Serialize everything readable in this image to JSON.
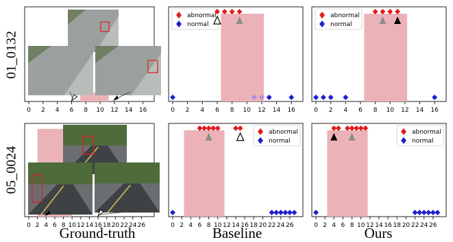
{
  "rows": [
    {
      "label": "01_0132",
      "xticks": [
        "0",
        "2",
        "4",
        "6",
        "8",
        "10",
        "12",
        "14",
        "16"
      ],
      "xmax": 17,
      "groundtruth": {
        "band": [
          7.2,
          11.2
        ],
        "open_arrow_frame": 6,
        "filled_arrow_frame": 12
      },
      "baseline": {
        "band": [
          6.5,
          12.3
        ],
        "detections": [
          {
            "frame": 0,
            "class": "normal"
          },
          {
            "frame": 6,
            "class": "abnormal"
          },
          {
            "frame": 7,
            "class": "abnormal"
          },
          {
            "frame": 8,
            "class": "abnormal"
          },
          {
            "frame": 9,
            "class": "abnormal"
          },
          {
            "frame": 11,
            "class": "faded"
          },
          {
            "frame": 12,
            "class": "faded"
          },
          {
            "frame": 13,
            "class": "normal"
          },
          {
            "frame": 16,
            "class": "normal"
          }
        ],
        "markers": [
          {
            "frame": 6,
            "kind": "open"
          },
          {
            "frame": 9,
            "kind": "gray"
          }
        ]
      },
      "ours": {
        "band": [
          6.5,
          12.3
        ],
        "detections": [
          {
            "frame": 0,
            "class": "normal"
          },
          {
            "frame": 1,
            "class": "normal"
          },
          {
            "frame": 2,
            "class": "normal"
          },
          {
            "frame": 4,
            "class": "normal"
          },
          {
            "frame": 8,
            "class": "abnormal"
          },
          {
            "frame": 9,
            "class": "abnormal"
          },
          {
            "frame": 10,
            "class": "abnormal"
          },
          {
            "frame": 11,
            "class": "abnormal"
          },
          {
            "frame": 16,
            "class": "normal"
          }
        ],
        "markers": [
          {
            "frame": 9,
            "kind": "gray"
          },
          {
            "frame": 11,
            "kind": "filled"
          }
        ]
      }
    },
    {
      "label": "05_0024",
      "xticks": [
        "0",
        "2",
        "4",
        "6",
        "8",
        "10",
        "12",
        "14",
        "16",
        "18",
        "20",
        "22",
        "24",
        "26"
      ],
      "xmax": 28,
      "groundtruth": {
        "band": [
          2,
          10
        ],
        "open_arrow_frame": 16,
        "filled_arrow_frame": 4
      },
      "baseline": {
        "band": [
          2.5,
          11.5
        ],
        "detections": [
          {
            "frame": 0,
            "class": "normal"
          },
          {
            "frame": 6,
            "class": "abnormal"
          },
          {
            "frame": 7,
            "class": "abnormal"
          },
          {
            "frame": 8,
            "class": "abnormal"
          },
          {
            "frame": 9,
            "class": "abnormal"
          },
          {
            "frame": 10,
            "class": "abnormal"
          },
          {
            "frame": 14,
            "class": "abnormal"
          },
          {
            "frame": 15,
            "class": "abnormal"
          },
          {
            "frame": 22,
            "class": "normal"
          },
          {
            "frame": 23,
            "class": "normal"
          },
          {
            "frame": 24,
            "class": "normal"
          },
          {
            "frame": 25,
            "class": "normal"
          },
          {
            "frame": 26,
            "class": "normal"
          },
          {
            "frame": 27,
            "class": "normal"
          }
        ],
        "markers": [
          {
            "frame": 8,
            "kind": "gray"
          },
          {
            "frame": 15,
            "kind": "open"
          }
        ]
      },
      "ours": {
        "band": [
          2.5,
          11.5
        ],
        "detections": [
          {
            "frame": 0,
            "class": "normal"
          },
          {
            "frame": 4,
            "class": "abnormal"
          },
          {
            "frame": 5,
            "class": "abnormal"
          },
          {
            "frame": 7,
            "class": "abnormal"
          },
          {
            "frame": 8,
            "class": "abnormal"
          },
          {
            "frame": 9,
            "class": "abnormal"
          },
          {
            "frame": 10,
            "class": "abnormal"
          },
          {
            "frame": 11,
            "class": "abnormal"
          },
          {
            "frame": 22,
            "class": "normal"
          },
          {
            "frame": 23,
            "class": "normal"
          },
          {
            "frame": 24,
            "class": "normal"
          },
          {
            "frame": 25,
            "class": "normal"
          },
          {
            "frame": 26,
            "class": "normal"
          },
          {
            "frame": 27,
            "class": "normal"
          }
        ],
        "markers": [
          {
            "frame": 4,
            "kind": "filled"
          },
          {
            "frame": 8,
            "kind": "gray"
          }
        ]
      }
    }
  ],
  "legend": {
    "abnormal": "abnormal",
    "normal": "normal"
  },
  "columns": {
    "groundtruth": "Ground-truth",
    "baseline": "Baseline",
    "ours": "Ours"
  },
  "colors": {
    "abnormal": "#e31a1c",
    "normal": "#1f1fcc",
    "faded": "#b48be0",
    "band": "#ebb3b7",
    "gray_marker": "#8c8c8c",
    "axis": "#222222"
  }
}
